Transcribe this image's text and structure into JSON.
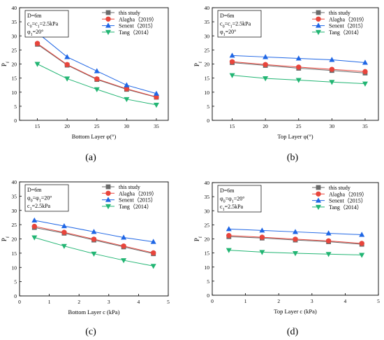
{
  "colors": {
    "this_study": "#6b6b6b",
    "alagha": "#e8453c",
    "senent": "#1f66e5",
    "tang": "#22b573"
  },
  "chart_data": [
    {
      "type": "line",
      "panel_label": "(a)",
      "xlabel": "Bottom Layer φ(°)",
      "ylabel": "P_f",
      "xlim": [
        12,
        37
      ],
      "ylim": [
        0,
        40
      ],
      "xticks": [
        15,
        20,
        25,
        30,
        35
      ],
      "yticks": [
        0,
        5,
        10,
        15,
        20,
        25,
        30,
        35,
        40
      ],
      "annotation": [
        "D=6m",
        "c0=c1=2.5kPa",
        "φ1=20°"
      ],
      "legend_position": "top-right",
      "x": [
        15,
        20,
        25,
        30,
        35
      ],
      "series": [
        {
          "name": "this study",
          "marker": "square",
          "color_key": "this_study",
          "values": [
            27.0,
            19.6,
            14.5,
            11.0,
            8.2
          ]
        },
        {
          "name": "Alagha（2019）",
          "marker": "circle",
          "color_key": "alagha",
          "values": [
            27.3,
            19.8,
            14.7,
            11.2,
            8.3
          ]
        },
        {
          "name": "Senent（2015）",
          "marker": "triangle-up",
          "color_key": "senent",
          "values": [
            31.1,
            22.5,
            17.5,
            12.5,
            9.5
          ]
        },
        {
          "name": "Tang（2014）",
          "marker": "triangle-down",
          "color_key": "tang",
          "values": [
            20.0,
            14.8,
            11.0,
            7.5,
            5.5
          ]
        }
      ]
    },
    {
      "type": "line",
      "panel_label": "(b)",
      "xlabel": "Top Layer φ(°)",
      "ylabel": "P_f",
      "xlim": [
        12,
        37
      ],
      "ylim": [
        0,
        40
      ],
      "xticks": [
        15,
        20,
        25,
        30,
        35
      ],
      "yticks": [
        0,
        5,
        10,
        15,
        20,
        25,
        30,
        35,
        40
      ],
      "annotation": [
        "D=6m",
        "c0=c1=2.5kPa",
        "φ1=20°"
      ],
      "legend_position": "top-right",
      "x": [
        15,
        20,
        25,
        30,
        35
      ],
      "series": [
        {
          "name": "this study",
          "marker": "square",
          "color_key": "this_study",
          "values": [
            20.5,
            19.5,
            18.5,
            17.7,
            16.8
          ]
        },
        {
          "name": "Alagha（2019）",
          "marker": "circle",
          "color_key": "alagha",
          "values": [
            20.8,
            19.8,
            18.9,
            18.1,
            17.3
          ]
        },
        {
          "name": "Senent（2015）",
          "marker": "triangle-up",
          "color_key": "senent",
          "values": [
            23.0,
            22.5,
            22.0,
            21.5,
            20.5
          ]
        },
        {
          "name": "Tang（2014）",
          "marker": "triangle-down",
          "color_key": "tang",
          "values": [
            16.0,
            14.9,
            14.3,
            13.6,
            13.0
          ]
        }
      ]
    },
    {
      "type": "line",
      "panel_label": "(c)",
      "xlabel": "Bottom Layer c (kPa)",
      "ylabel": "P_f",
      "xlim": [
        0,
        5
      ],
      "ylim": [
        0,
        40
      ],
      "xticks": [
        0,
        1,
        2,
        3,
        4,
        5
      ],
      "yticks": [
        0,
        5,
        10,
        15,
        20,
        25,
        30,
        35,
        40
      ],
      "annotation": [
        "D=6m",
        "φ0=φ1=20°",
        "c1=2.5kPa"
      ],
      "legend_position": "top-right",
      "x": [
        0.5,
        1.5,
        2.5,
        3.5,
        4.5
      ],
      "series": [
        {
          "name": "this study",
          "marker": "square",
          "color_key": "this_study",
          "values": [
            24.0,
            22.0,
            19.6,
            17.2,
            14.8
          ]
        },
        {
          "name": "Alagha（2019）",
          "marker": "circle",
          "color_key": "alagha",
          "values": [
            24.4,
            22.3,
            19.9,
            17.5,
            15.1
          ]
        },
        {
          "name": "Senent（2015）",
          "marker": "triangle-up",
          "color_key": "senent",
          "values": [
            26.5,
            24.5,
            22.5,
            20.5,
            19.0
          ]
        },
        {
          "name": "Tang（2014）",
          "marker": "triangle-down",
          "color_key": "tang",
          "values": [
            20.5,
            17.5,
            14.8,
            12.5,
            10.5
          ]
        }
      ]
    },
    {
      "type": "line",
      "panel_label": "(d)",
      "xlabel": "Top Layer c (kPa)",
      "ylabel": "P_f",
      "xlim": [
        0,
        5
      ],
      "ylim": [
        0,
        40
      ],
      "xticks": [
        0,
        1,
        2,
        3,
        4,
        5
      ],
      "yticks": [
        0,
        5,
        10,
        15,
        20,
        25,
        30,
        35,
        40
      ],
      "annotation": [
        "D=6m",
        "φ0=φ1=20°",
        "c1=2.5kPa"
      ],
      "legend_position": "top-right",
      "x": [
        0.5,
        1.5,
        2.5,
        3.5,
        4.5
      ],
      "series": [
        {
          "name": "this study",
          "marker": "square",
          "color_key": "this_study",
          "values": [
            20.8,
            20.3,
            19.6,
            19.0,
            18.1
          ]
        },
        {
          "name": "Alagha（2019）",
          "marker": "circle",
          "color_key": "alagha",
          "values": [
            21.2,
            20.6,
            19.9,
            19.3,
            18.4
          ]
        },
        {
          "name": "Senent（2015）",
          "marker": "triangle-up",
          "color_key": "senent",
          "values": [
            23.5,
            23.0,
            22.5,
            22.0,
            21.5
          ]
        },
        {
          "name": "Tang（2014）",
          "marker": "triangle-down",
          "color_key": "tang",
          "values": [
            16.0,
            15.3,
            14.9,
            14.6,
            14.3
          ]
        }
      ]
    }
  ]
}
